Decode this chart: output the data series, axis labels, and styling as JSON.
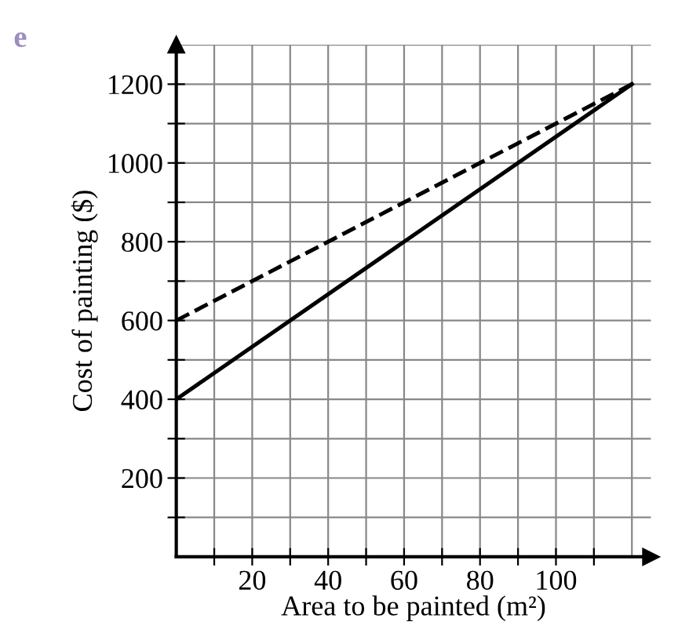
{
  "chart_data": {
    "type": "line",
    "xlabel": "Area to be painted (m²)",
    "ylabel": "Cost of painting ($)",
    "annotations": [
      "e"
    ],
    "x": [
      0,
      120
    ],
    "series": [
      {
        "color": "#000000",
        "line_style": "solid",
        "values": [
          400,
          1200
        ]
      },
      {
        "color": "#000000",
        "line_style": "dashed",
        "values": [
          600,
          1200
        ]
      }
    ],
    "xlim": [
      0,
      125
    ],
    "ylim": [
      0,
      1300
    ],
    "xticks": [
      {
        "value": 10,
        "label": null
      },
      20,
      {
        "value": 30,
        "label": null
      },
      40,
      {
        "value": 50,
        "label": null
      },
      60,
      {
        "value": 70,
        "label": null
      },
      80,
      {
        "value": 90,
        "label": null
      },
      100,
      {
        "value": 110,
        "label": null
      }
    ],
    "yticks": [
      {
        "value": 100,
        "label": null
      },
      200,
      {
        "value": 300,
        "label": null
      },
      400,
      {
        "value": 500,
        "label": null
      },
      600,
      {
        "value": 700,
        "label": null
      },
      800,
      {
        "value": 900,
        "label": null
      },
      1000,
      {
        "value": 1100,
        "label": null
      },
      1200
    ],
    "grid": true,
    "marker": "none"
  }
}
